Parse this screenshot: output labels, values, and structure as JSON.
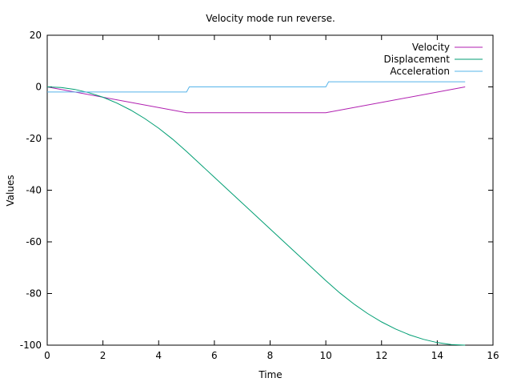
{
  "chart_data": {
    "type": "line",
    "title": "Velocity mode run reverse.",
    "xlabel": "Time",
    "ylabel": "Values",
    "xlim": [
      0,
      16
    ],
    "ylim": [
      -100,
      20
    ],
    "xticks": [
      0,
      2,
      4,
      6,
      8,
      10,
      12,
      14,
      16
    ],
    "yticks": [
      20,
      0,
      -20,
      -40,
      -60,
      -80,
      -100
    ],
    "xtick_labels": [
      "0",
      "2",
      "4",
      "6",
      "8",
      "10",
      "12",
      "14",
      "16"
    ],
    "ytick_labels": [
      "20",
      "0",
      "-20",
      "-40",
      "-60",
      "-80",
      "-100"
    ],
    "grid": false,
    "legend_position": "top-right",
    "series": [
      {
        "name": "Velocity",
        "color": "#b01fb0",
        "x": [
          0,
          5,
          10,
          15
        ],
        "y": [
          0,
          -10,
          -10,
          0
        ]
      },
      {
        "name": "Displacement",
        "color": "#009e73",
        "x": [
          0,
          0.5,
          1,
          1.5,
          2,
          2.5,
          3,
          3.5,
          4,
          4.5,
          5,
          6,
          7,
          8,
          9,
          10,
          10.5,
          11,
          11.5,
          12,
          12.5,
          13,
          13.5,
          14,
          14.5,
          15
        ],
        "y": [
          0,
          -0.25,
          -1,
          -2.25,
          -4,
          -6.25,
          -9,
          -12.25,
          -16,
          -20.25,
          -25,
          -35,
          -45,
          -55,
          -65,
          -75,
          -79.75,
          -84,
          -87.75,
          -91,
          -93.75,
          -96,
          -97.75,
          -99,
          -99.75,
          -100
        ]
      },
      {
        "name": "Acceleration",
        "color": "#56b4e9",
        "x": [
          0,
          5,
          5,
          5.1,
          10,
          10,
          10.1,
          15
        ],
        "y": [
          -2,
          -2,
          -2,
          0,
          0,
          0,
          2,
          2
        ]
      }
    ]
  }
}
